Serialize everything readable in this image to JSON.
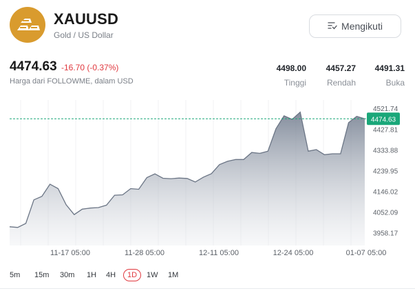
{
  "header": {
    "symbol": "XAUUSD",
    "subtitle": "Gold / US Dollar",
    "follow_label": "Mengikuti",
    "logo_icon": "gold-bars-icon",
    "follow_icon": "list-check-icon"
  },
  "quote": {
    "price": "4474.63",
    "change": "-16.70 (-0.37%)",
    "source": "Harga dari FOLLOWME, dalam USD"
  },
  "stats": [
    {
      "value": "4498.00",
      "label": "Tinggi"
    },
    {
      "value": "4457.27",
      "label": "Rendah"
    },
    {
      "value": "4491.31",
      "label": "Buka"
    }
  ],
  "timeframes": {
    "items": [
      "5m",
      "15m",
      "30m",
      "1H",
      "4H",
      "1D",
      "1W",
      "1M"
    ],
    "selected": "1D"
  },
  "colors": {
    "accent_red": "#e0383e",
    "price_tag": "#1aa779",
    "line": "#6b7585",
    "logo": "#d99b2e"
  },
  "chart_data": {
    "type": "area",
    "ylim": [
      3900,
      4560
    ],
    "y_ticks": [
      "4521.74",
      "4427.81",
      "4333.88",
      "4239.95",
      "4146.02",
      "4052.09",
      "3958.17"
    ],
    "x_ticks": [
      "11-17 05:00",
      "11-28 05:00",
      "12-11 05:00",
      "12-24 05:00",
      "01-07 05:00"
    ],
    "current_price_label": "4474.63",
    "current_price": 4474.63,
    "values": [
      3985,
      3982,
      4000,
      4107,
      4123,
      4178,
      4158,
      4085,
      4040,
      4065,
      4070,
      4072,
      4083,
      4128,
      4130,
      4158,
      4155,
      4208,
      4225,
      4205,
      4203,
      4206,
      4204,
      4188,
      4210,
      4226,
      4267,
      4282,
      4290,
      4290,
      4322,
      4318,
      4328,
      4430,
      4488,
      4472,
      4505,
      4328,
      4335,
      4312,
      4316,
      4316,
      4457,
      4486,
      4474.63
    ]
  }
}
